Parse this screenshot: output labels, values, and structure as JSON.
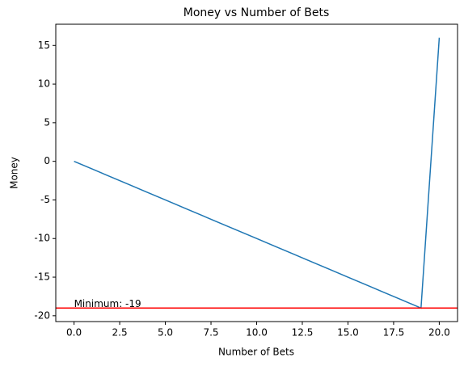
{
  "chart_data": {
    "type": "line",
    "title": "Money vs Number of Bets",
    "x_label": "Number of Bets",
    "y_label": "Money",
    "x": [
      0,
      1,
      2,
      3,
      4,
      5,
      6,
      7,
      8,
      9,
      10,
      11,
      12,
      13,
      14,
      15,
      16,
      17,
      18,
      19,
      20
    ],
    "series": [
      {
        "color": "#1f77b4",
        "values": [
          0,
          -1,
          -2,
          -3,
          -4,
          -5,
          -6,
          -7,
          -8,
          -9,
          -10,
          -11,
          -12,
          -13,
          -14,
          -15,
          -16,
          -17,
          -18,
          -19,
          16
        ]
      }
    ],
    "hline": {
      "value": -19,
      "color": "red"
    },
    "annotation": "Minimum: -19",
    "xlim": [
      -1,
      21
    ],
    "ylim": [
      -20.75,
      17.75
    ],
    "xticks": [
      {
        "value": 0,
        "label": "0.0"
      },
      2.5,
      {
        "value": 5,
        "label": "5.0"
      },
      7.5,
      {
        "value": 10,
        "label": "10.0"
      },
      12.5,
      {
        "value": 15,
        "label": "15.0"
      },
      17.5,
      {
        "value": 20,
        "label": "20.0"
      }
    ],
    "yticks": [
      -20,
      -15,
      -10,
      -5,
      0,
      5,
      10,
      15
    ]
  }
}
